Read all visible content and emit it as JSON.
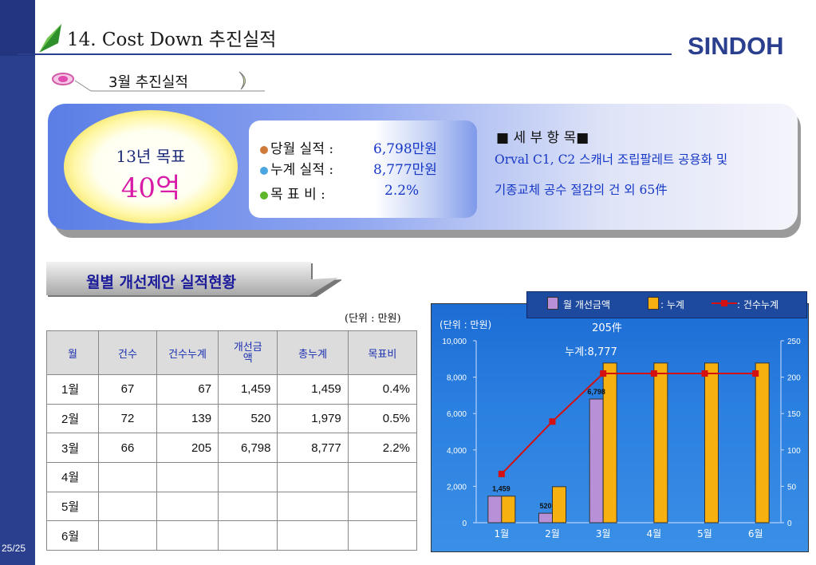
{
  "page_number": "25/25",
  "page_title": "14. Cost Down 추진실적",
  "logo": "SINDOH",
  "section_title": "3월 추진실적",
  "goal": {
    "label": "13년 목표",
    "value": "40억"
  },
  "stats": [
    {
      "label": "당월 실적 :",
      "value": "6,798만원",
      "dot_color": "#d07a3a"
    },
    {
      "label": "누계 실적 :",
      "value": "8,777만원",
      "dot_color": "#4aa6e0"
    },
    {
      "label": "목  표  비 :",
      "value": "2.2%",
      "dot_color": "#5cb82a"
    }
  ],
  "detail": {
    "heading": "세 부 항 목",
    "lines": [
      "Orval C1, C2 스캐너 조립팔레트 공용화 및",
      "기종교체 공수 절감의 건 외 65件"
    ]
  },
  "sub_banner": "월별 개선제안 실적현황",
  "unit": "(단위 : 만원)",
  "table": {
    "headers": [
      "월",
      "건수",
      "건수누계",
      "개선금\n액",
      "총누계",
      "목표비"
    ],
    "rows": [
      [
        "1월",
        "67",
        "67",
        "1,459",
        "1,459",
        "0.4%"
      ],
      [
        "2월",
        "72",
        "139",
        "520",
        "1,979",
        "0.5%"
      ],
      [
        "3월",
        "66",
        "205",
        "6,798",
        "8,777",
        "2.2%"
      ],
      [
        "4월",
        "",
        "",
        "",
        "",
        ""
      ],
      [
        "5월",
        "",
        "",
        "",
        "",
        ""
      ],
      [
        "6월",
        "",
        "",
        "",
        "",
        ""
      ]
    ]
  },
  "chart_data": {
    "type": "bar",
    "unit_label": "(단위 : 만원)",
    "categories": [
      "1월",
      "2월",
      "3월",
      "4월",
      "5월",
      "6월"
    ],
    "series": [
      {
        "name": "월 개선금액",
        "kind": "bar",
        "axis": "left",
        "color": "#b890d8",
        "values": [
          1459,
          520,
          6798,
          null,
          null,
          null
        ]
      },
      {
        "name": ": 누계",
        "kind": "bar",
        "axis": "left",
        "color": "#f6b010",
        "values": [
          1459,
          1979,
          8777,
          8777,
          8777,
          8777
        ]
      },
      {
        "name": ": 건수누계",
        "kind": "line",
        "axis": "right",
        "color": "#d41010",
        "values": [
          67,
          139,
          205,
          205,
          205,
          205
        ]
      }
    ],
    "ylim": [
      0,
      10000
    ],
    "yticks": [
      "0",
      "2,000",
      "4,000",
      "6,000",
      "8,000",
      "10,000"
    ],
    "y2lim": [
      0,
      250
    ],
    "y2ticks": [
      "0",
      "50",
      "100",
      "150",
      "200",
      "250"
    ],
    "data_labels": [
      "1,459",
      "520",
      "6,798"
    ],
    "annotations": [
      "205件",
      "누계:8,777"
    ],
    "legend_position": "top-right",
    "grid": false
  }
}
